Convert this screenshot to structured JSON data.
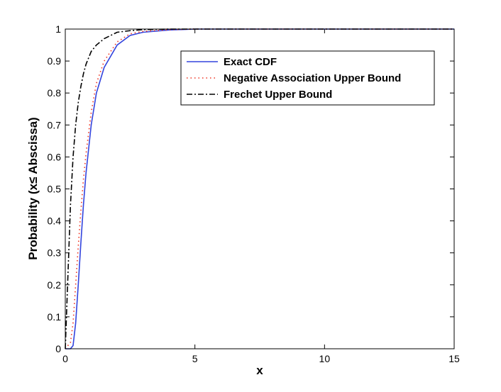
{
  "chart_data": {
    "type": "line",
    "x_label": "x",
    "y_label": "Probability (x≤ Abscissa)",
    "x": [
      0,
      0.2,
      0.3,
      0.4,
      0.5,
      0.6,
      0.7,
      0.8,
      1.0,
      1.2,
      1.5,
      2,
      2.5,
      3,
      4,
      5,
      7,
      10,
      15
    ],
    "series": [
      {
        "name": "Exact CDF",
        "color": "#3344dd",
        "linestyle": "solid",
        "values": [
          0,
          0,
          0.01,
          0.08,
          0.2,
          0.33,
          0.45,
          0.55,
          0.7,
          0.8,
          0.88,
          0.95,
          0.98,
          0.99,
          0.997,
          1,
          1,
          1,
          1
        ]
      },
      {
        "name": "Negative Association Upper Bound",
        "color": "#ee3322",
        "linestyle": "dotted",
        "values": [
          0,
          0.02,
          0.08,
          0.2,
          0.32,
          0.43,
          0.53,
          0.61,
          0.74,
          0.83,
          0.9,
          0.96,
          0.985,
          0.993,
          0.998,
          1,
          1,
          1,
          1
        ]
      },
      {
        "name": "Frechet Upper Bound",
        "color": "#000000",
        "linestyle": "dashdot",
        "values": [
          0,
          0.45,
          0.6,
          0.7,
          0.77,
          0.82,
          0.86,
          0.89,
          0.93,
          0.95,
          0.97,
          0.99,
          0.995,
          0.998,
          1,
          1,
          1,
          1,
          1
        ]
      }
    ],
    "xlim": [
      0,
      15
    ],
    "xticks": [
      0,
      5,
      10,
      15
    ],
    "ylim": [
      0,
      1
    ],
    "yticks": [
      0,
      0.1,
      0.2,
      0.3,
      0.4,
      0.5,
      0.6,
      0.7,
      0.8,
      0.9,
      1
    ],
    "grid": false,
    "legend": "top-right"
  }
}
